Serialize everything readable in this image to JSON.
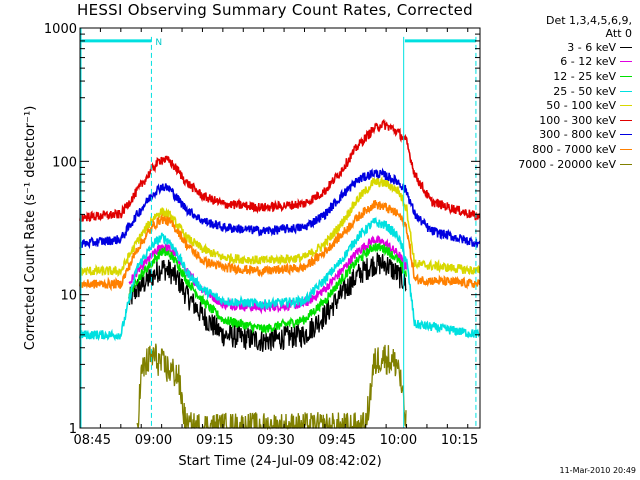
{
  "chart_data": {
    "type": "line",
    "title": "HESSI Observing Summary Count Rates, Corrected",
    "xlabel": "Start Time (24-Jul-09 08:42:02)",
    "ylabel": "Corrected Count Rate (s⁻¹ detector⁻¹)",
    "y_scale": "log",
    "ylim": [
      1,
      1000
    ],
    "y_ticks": [
      {
        "value": 1,
        "label": "1"
      },
      {
        "value": 10,
        "label": "10"
      },
      {
        "value": 100,
        "label": "100"
      },
      {
        "value": 1000,
        "label": "1000"
      }
    ],
    "xlim_minutes": [
      0,
      98
    ],
    "x_ticks": [
      {
        "t": 3,
        "label": "08:45"
      },
      {
        "t": 18,
        "label": "09:00"
      },
      {
        "t": 33,
        "label": "09:15"
      },
      {
        "t": 48,
        "label": "09:30"
      },
      {
        "t": 63,
        "label": "09:45"
      },
      {
        "t": 78,
        "label": "10:00"
      },
      {
        "t": 93,
        "label": "10:15"
      }
    ],
    "legend_header": [
      "Det 1,3,4,5,6,9,",
      "Att 0"
    ],
    "legend_position": "right",
    "annotations": [
      {
        "text": "N",
        "t": 17.5,
        "value": 800
      }
    ],
    "top_bars": [
      {
        "t_start": 0,
        "t_end": 17.5,
        "value": 800
      },
      {
        "t_start": 79.6,
        "t_end": 97,
        "value": 800
      }
    ],
    "vertical_lines_dashed": [
      17.5,
      97
    ],
    "vertical_lines_solid": [
      79.3
    ],
    "series": [
      {
        "name": "3 - 6 keV",
        "color": "#000000",
        "t": [
          12,
          14,
          18,
          20,
          22,
          24,
          26,
          30,
          35,
          45,
          55,
          60,
          64,
          68,
          72,
          75,
          78,
          80
        ],
        "values": [
          9,
          11,
          14,
          16,
          15,
          13,
          10,
          7,
          5,
          4.5,
          5,
          7,
          10,
          14,
          17,
          17,
          14,
          12
        ]
      },
      {
        "name": "6 - 12 keV",
        "color": "#e000e0",
        "t": [
          12,
          14,
          18,
          20,
          22,
          24,
          26,
          30,
          35,
          45,
          55,
          60,
          64,
          68,
          72,
          75,
          78,
          80
        ],
        "values": [
          12,
          15,
          20,
          23,
          22,
          19,
          15,
          11,
          8.5,
          8,
          8.5,
          11,
          15,
          21,
          26,
          24,
          20,
          16
        ]
      },
      {
        "name": "12 - 25 keV",
        "color": "#00e000",
        "t": [
          12,
          14,
          18,
          20,
          22,
          24,
          26,
          30,
          35,
          45,
          55,
          60,
          64,
          68,
          72,
          75,
          78,
          80
        ],
        "values": [
          10,
          13,
          18,
          21,
          20,
          17,
          13,
          9,
          6.5,
          5.5,
          6.5,
          9,
          13,
          18,
          23,
          22,
          18,
          14
        ]
      },
      {
        "name": "25 - 50 keV",
        "color": "#00e0e0",
        "t": [
          0,
          10,
          14,
          18,
          20,
          22,
          24,
          26,
          30,
          35,
          45,
          55,
          60,
          64,
          68,
          72,
          75,
          78,
          80,
          82,
          98
        ],
        "values": [
          5,
          5,
          16,
          24,
          27,
          25,
          20,
          15,
          11,
          9,
          8.5,
          9,
          13,
          18,
          27,
          35,
          33,
          27,
          18,
          6,
          5
        ]
      },
      {
        "name": "50 - 100 keV",
        "color": "#d8d800",
        "t": [
          0,
          10,
          14,
          18,
          20,
          22,
          24,
          26,
          30,
          35,
          45,
          55,
          60,
          64,
          68,
          72,
          75,
          78,
          80,
          82,
          98
        ],
        "values": [
          15,
          15,
          25,
          38,
          42,
          39,
          33,
          27,
          22,
          19,
          18,
          19,
          24,
          34,
          52,
          70,
          68,
          60,
          45,
          17,
          15
        ]
      },
      {
        "name": "100 - 300 keV",
        "color": "#e00000",
        "t": [
          0,
          10,
          14,
          18,
          20,
          22,
          24,
          26,
          30,
          35,
          45,
          55,
          60,
          64,
          68,
          72,
          74,
          76,
          78,
          80,
          82,
          86,
          98
        ],
        "values": [
          38,
          40,
          60,
          90,
          105,
          100,
          85,
          70,
          55,
          48,
          45,
          48,
          60,
          85,
          130,
          175,
          190,
          180,
          165,
          140,
          80,
          50,
          38
        ]
      },
      {
        "name": "300 - 800 keV",
        "color": "#0000e0",
        "t": [
          0,
          10,
          14,
          18,
          20,
          22,
          24,
          26,
          30,
          35,
          45,
          55,
          60,
          64,
          68,
          72,
          75,
          78,
          80,
          82,
          86,
          98
        ],
        "values": [
          24,
          26,
          40,
          58,
          65,
          62,
          52,
          44,
          36,
          32,
          30,
          32,
          40,
          55,
          72,
          82,
          78,
          70,
          60,
          40,
          30,
          24
        ]
      },
      {
        "name": "800 - 7000 keV",
        "color": "#ff8000",
        "t": [
          0,
          10,
          14,
          18,
          20,
          22,
          24,
          26,
          30,
          35,
          45,
          55,
          60,
          64,
          68,
          72,
          75,
          78,
          80,
          82,
          98
        ],
        "values": [
          12,
          12,
          22,
          33,
          37,
          35,
          30,
          24,
          18,
          16,
          15,
          16,
          21,
          28,
          38,
          48,
          45,
          40,
          32,
          13,
          12
        ]
      },
      {
        "name": "7000 - 20000 keV",
        "color": "#808000",
        "t": [
          14,
          15,
          16,
          18,
          20,
          22,
          24,
          26,
          70,
          72,
          74,
          76,
          78,
          80
        ],
        "values": [
          1,
          2.5,
          3,
          3.5,
          3,
          2.7,
          2.5,
          1,
          1,
          3,
          3.5,
          3.2,
          3,
          1
        ]
      }
    ],
    "footer": "11-Mar-2010 20:49"
  }
}
